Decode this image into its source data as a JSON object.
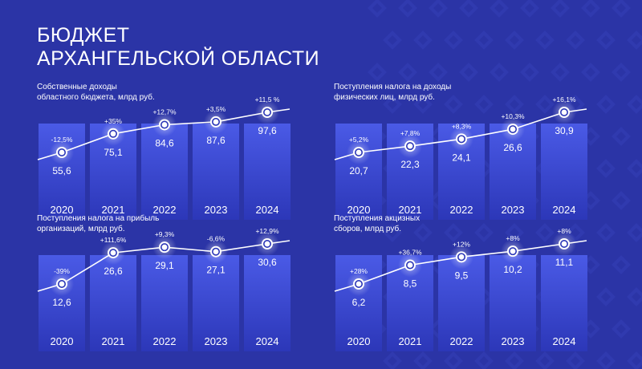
{
  "page": {
    "title_lines": [
      "БЮДЖЕТ",
      "АРХАНГЕЛЬСКОЙ ОБЛАСТИ"
    ],
    "colors": {
      "background": "#2b34a6",
      "bar_top": "#4a5ae6",
      "bar_bottom": "#2c37b8",
      "line": "#ffffff",
      "ornament": "#3540b6"
    }
  },
  "chart_data": [
    {
      "type": "bar",
      "title_lines": [
        "Собственные доходы",
        "областного бюджета, млрд руб."
      ],
      "categories": [
        "2020",
        "2021",
        "2022",
        "2023",
        "2024"
      ],
      "values": [
        55.6,
        75.1,
        84.6,
        87.6,
        97.6
      ],
      "value_labels": [
        "55,6",
        "75,1",
        "84,6",
        "87,6",
        "97,6"
      ],
      "growth_labels": [
        "-12,5%",
        "+35%",
        "+12,7%",
        "+3,5%",
        "+11,5 %"
      ],
      "overlay": "line"
    },
    {
      "type": "bar",
      "title_lines": [
        "Поступления налога на доходы",
        "физических лиц, млрд руб."
      ],
      "categories": [
        "2020",
        "2021",
        "2022",
        "2023",
        "2024"
      ],
      "values": [
        20.7,
        22.3,
        24.1,
        26.6,
        30.9
      ],
      "value_labels": [
        "20,7",
        "22,3",
        "24,1",
        "26,6",
        "30,9"
      ],
      "growth_labels": [
        "+5,2%",
        "+7,8%",
        "+8,3%",
        "+10,3%",
        "+16,1%"
      ],
      "overlay": "line"
    },
    {
      "type": "bar",
      "title_lines": [
        "Поступления налога на прибыль",
        "организаций, млрд руб."
      ],
      "categories": [
        "2020",
        "2021",
        "2022",
        "2023",
        "2024"
      ],
      "values": [
        12.6,
        26.6,
        29.1,
        27.1,
        30.6
      ],
      "value_labels": [
        "12,6",
        "26,6",
        "29,1",
        "27,1",
        "30,6"
      ],
      "growth_labels": [
        "-39%",
        "+111,6%",
        "+9,3%",
        "-6,6%",
        "+12,9%"
      ],
      "overlay": "line"
    },
    {
      "type": "bar",
      "title_lines": [
        "Поступления акцизных",
        "сборов, млрд руб."
      ],
      "categories": [
        "2020",
        "2021",
        "2022",
        "2023",
        "2024"
      ],
      "values": [
        6.2,
        8.5,
        9.5,
        10.2,
        11.1
      ],
      "value_labels": [
        "6,2",
        "8,5",
        "9,5",
        "10,2",
        "11,1"
      ],
      "growth_labels": [
        "+28%",
        "+36,7%",
        "+12%",
        "+8%",
        "+8%"
      ],
      "overlay": "line"
    }
  ]
}
